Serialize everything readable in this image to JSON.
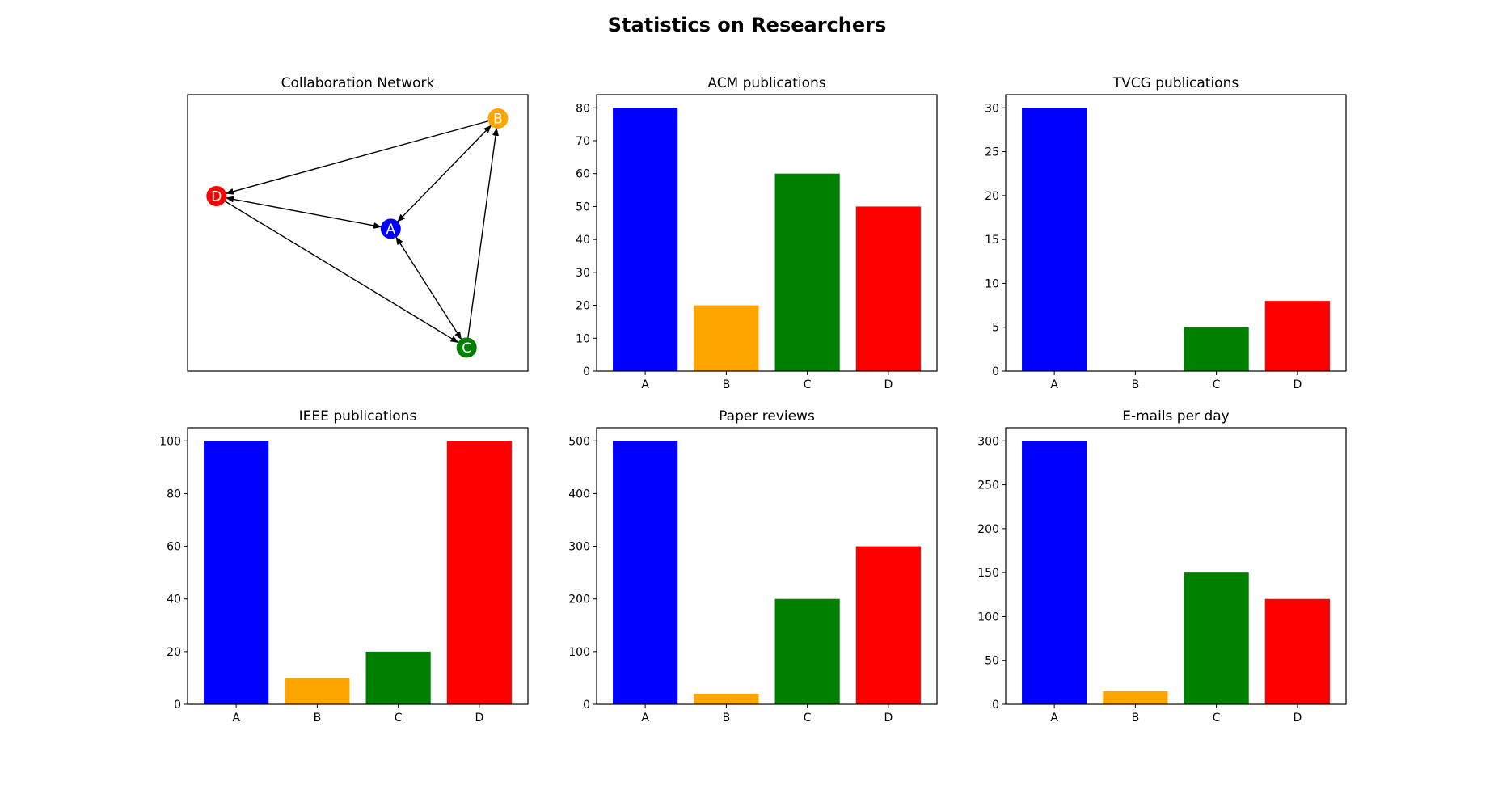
{
  "figure": {
    "title": "Statistics on Researchers"
  },
  "chart_data": [
    {
      "type": "network",
      "title": "Collaboration Network",
      "nodes": [
        {
          "id": "A",
          "color": "#0000ff"
        },
        {
          "id": "B",
          "color": "#ffa500"
        },
        {
          "id": "C",
          "color": "#008000"
        },
        {
          "id": "D",
          "color": "#ff0000"
        }
      ],
      "edges": [
        {
          "from": "A",
          "to": "B",
          "bidirectional": true
        },
        {
          "from": "A",
          "to": "C",
          "bidirectional": true
        },
        {
          "from": "A",
          "to": "D",
          "bidirectional": true
        },
        {
          "from": "B",
          "to": "D",
          "bidirectional": false
        },
        {
          "from": "C",
          "to": "B",
          "bidirectional": false
        },
        {
          "from": "D",
          "to": "C",
          "bidirectional": false
        }
      ]
    },
    {
      "type": "bar",
      "title": "ACM publications",
      "categories": [
        "A",
        "B",
        "C",
        "D"
      ],
      "values": [
        80,
        20,
        60,
        50
      ],
      "colors": [
        "#0000ff",
        "#ffa500",
        "#008000",
        "#ff0000"
      ],
      "ylim": [
        0,
        84
      ],
      "yticks": [
        0,
        10,
        20,
        30,
        40,
        50,
        60,
        70,
        80
      ]
    },
    {
      "type": "bar",
      "title": "TVCG publications",
      "categories": [
        "A",
        "B",
        "C",
        "D"
      ],
      "values": [
        30,
        0,
        5,
        8
      ],
      "colors": [
        "#0000ff",
        "#ffa500",
        "#008000",
        "#ff0000"
      ],
      "ylim": [
        0,
        31.5
      ],
      "yticks": [
        0,
        5,
        10,
        15,
        20,
        25,
        30
      ]
    },
    {
      "type": "bar",
      "title": "IEEE publications",
      "categories": [
        "A",
        "B",
        "C",
        "D"
      ],
      "values": [
        100,
        10,
        20,
        100
      ],
      "colors": [
        "#0000ff",
        "#ffa500",
        "#008000",
        "#ff0000"
      ],
      "ylim": [
        0,
        105
      ],
      "yticks": [
        0,
        20,
        40,
        60,
        80,
        100
      ]
    },
    {
      "type": "bar",
      "title": "Paper reviews",
      "categories": [
        "A",
        "B",
        "C",
        "D"
      ],
      "values": [
        500,
        20,
        200,
        300
      ],
      "colors": [
        "#0000ff",
        "#ffa500",
        "#008000",
        "#ff0000"
      ],
      "ylim": [
        0,
        525
      ],
      "yticks": [
        0,
        100,
        200,
        300,
        400,
        500
      ]
    },
    {
      "type": "bar",
      "title": "E-mails per day",
      "categories": [
        "A",
        "B",
        "C",
        "D"
      ],
      "values": [
        300,
        15,
        150,
        120
      ],
      "colors": [
        "#0000ff",
        "#ffa500",
        "#008000",
        "#ff0000"
      ],
      "ylim": [
        0,
        315
      ],
      "yticks": [
        0,
        50,
        100,
        150,
        200,
        250,
        300
      ]
    }
  ]
}
